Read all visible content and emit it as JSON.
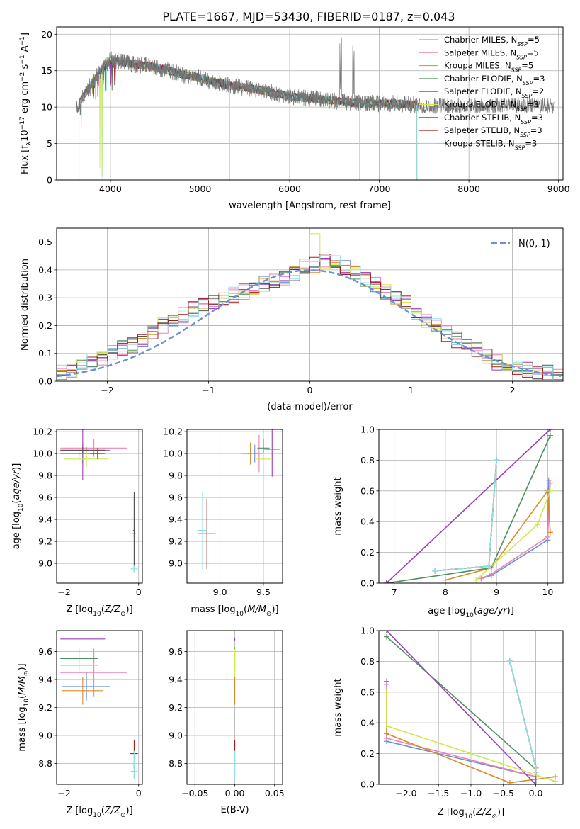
{
  "figure_title": "PLATE=1667, MJD=53430, FIBERID=0187, z=0.043",
  "series_styles": [
    {
      "name": "Chabrier MILES",
      "nssp": "5",
      "color": "#6b8ed6"
    },
    {
      "name": "Salpeter MILES",
      "nssp": "5",
      "color": "#ee82b4"
    },
    {
      "name": "Kroupa MILES",
      "nssp": "5",
      "color": "#d98c2a"
    },
    {
      "name": "Chabrier ELODIE",
      "nssp": "3",
      "color": "#4f8f5f"
    },
    {
      "name": "Salpeter ELODIE",
      "nssp": "2",
      "color": "#9a3fb8"
    },
    {
      "name": "Kroupa ELODIE",
      "nssp": "3",
      "color": "#cfe84a"
    },
    {
      "name": "Chabrier STELIB",
      "nssp": "3",
      "color": "#555555"
    },
    {
      "name": "Salpeter STELIB",
      "nssp": "3",
      "color": "#a11c1c"
    },
    {
      "name": "Kroupa STELIB",
      "nssp": "3",
      "color": "#8ee3e3"
    }
  ],
  "chart_data": [
    {
      "id": "spectrum",
      "type": "line",
      "xlabel": "wavelength [Angstrom, rest frame]",
      "ylabel": "Flux [f_λ10^-17 erg cm^-2 s^-1 A^-1]",
      "xlim": [
        3400,
        9050
      ],
      "ylim": [
        0,
        21
      ],
      "xticks": [
        4000,
        5000,
        6000,
        7000,
        8000,
        9000
      ],
      "yticks": [
        0,
        5,
        10,
        15,
        20
      ],
      "legend": "top-right",
      "data_anchors": {
        "wavelength": [
          3650,
          3800,
          4000,
          4200,
          4500,
          4800,
          5000,
          5300,
          5600,
          6000,
          6400,
          6800,
          7200,
          7420
        ],
        "flux": [
          10.5,
          13.5,
          16.5,
          16.0,
          15.5,
          14.5,
          14.0,
          13.0,
          12.5,
          11.5,
          11.0,
          10.5,
          10.5,
          10.3
        ]
      },
      "spikes_to_zero": [
        3915,
        5330,
        6780,
        7420
      ]
    },
    {
      "id": "residuals",
      "type": "line",
      "xlabel": "(data-model)/error",
      "ylabel": "Normed distribution",
      "xlim": [
        -2.5,
        2.5
      ],
      "ylim": [
        0,
        0.55
      ],
      "xticks": [
        -2,
        -1,
        0,
        1,
        2
      ],
      "yticks": [
        0.0,
        0.1,
        0.2,
        0.3,
        0.4,
        0.5
      ],
      "legend_label": "N(0, 1)",
      "legend": "top-right",
      "hist_bin_width": 0.1,
      "hist_base": [
        0.03,
        0.04,
        0.05,
        0.07,
        0.08,
        0.1,
        0.12,
        0.13,
        0.15,
        0.17,
        0.2,
        0.22,
        0.24,
        0.26,
        0.27,
        0.28,
        0.29,
        0.31,
        0.32,
        0.34,
        0.35,
        0.36,
        0.37,
        0.39,
        0.41,
        0.42,
        0.43,
        0.43,
        0.41,
        0.39,
        0.37,
        0.35,
        0.32,
        0.3,
        0.28,
        0.25,
        0.22,
        0.2,
        0.17,
        0.15,
        0.13,
        0.11,
        0.09,
        0.07,
        0.06,
        0.05,
        0.04,
        0.03,
        0.03,
        0.02
      ]
    },
    {
      "id": "age-vs-Z",
      "type": "scatter",
      "xlabel": "Z [log10(Z/Z⊙)]",
      "ylabel": "age  [log10(age/yr)]",
      "xlim": [
        -2.2,
        0.1
      ],
      "ylim": [
        8.82,
        10.22
      ],
      "xticks": [
        -2,
        0
      ],
      "yticks": [
        9.0,
        9.2,
        9.4,
        9.6,
        9.8,
        10.0,
        10.2
      ],
      "points": [
        {
          "s": 0,
          "x": -1.4,
          "y": 10.03,
          "ex": 0.65,
          "ey": 0.03
        },
        {
          "s": 1,
          "x": -1.2,
          "y": 10.05,
          "ex": 0.9,
          "ey": 0.08
        },
        {
          "s": 2,
          "x": -1.5,
          "y": 10.0,
          "ex": 0.55,
          "ey": 0.1
        },
        {
          "s": 3,
          "x": -1.6,
          "y": 10.0,
          "ex": 0.5,
          "ey": 0.04
        },
        {
          "s": 4,
          "x": -1.5,
          "y": 10.03,
          "ex": 0.6,
          "ey": 0.27
        },
        {
          "s": 5,
          "x": -1.4,
          "y": 9.95,
          "ex": 0.6,
          "ey": 0.07
        },
        {
          "s": 6,
          "x": -1.5,
          "y": 10.03,
          "ex": 0.6,
          "ey": 0.03
        },
        {
          "s": 7,
          "x": -1.1,
          "y": 10.0,
          "ex": 0.2,
          "ey": 0.05
        },
        {
          "s": 3,
          "x": -0.12,
          "y": 9.27,
          "ex": 0.05,
          "ey": 0.35
        },
        {
          "s": 6,
          "x": -0.12,
          "y": 9.3,
          "ex": 0.03,
          "ey": 0.35
        },
        {
          "s": 8,
          "x": -0.12,
          "y": 8.95,
          "ex": 0.1,
          "ey": 0.03
        }
      ]
    },
    {
      "id": "age-vs-mass",
      "type": "scatter",
      "xlabel": "mass [log10(M/M⊙)]",
      "ylabel": "",
      "xlim": [
        8.62,
        9.72
      ],
      "ylim": [
        8.82,
        10.22
      ],
      "xticks": [
        9.0,
        9.5
      ],
      "yticks": [
        9.0,
        9.2,
        9.4,
        9.6,
        9.8,
        10.0,
        10.2
      ],
      "points": [
        {
          "s": 0,
          "x": 9.4,
          "y": 10.0,
          "ex": 0.08,
          "ey": 0.08
        },
        {
          "s": 1,
          "x": 9.45,
          "y": 10.0,
          "ex": 0.05,
          "ey": 0.17
        },
        {
          "s": 2,
          "x": 9.35,
          "y": 10.0,
          "ex": 0.1,
          "ey": 0.1
        },
        {
          "s": 3,
          "x": 9.5,
          "y": 10.05,
          "ex": 0.07,
          "ey": 0.08
        },
        {
          "s": 4,
          "x": 9.6,
          "y": 10.04,
          "ex": 0.09,
          "ey": 0.25
        },
        {
          "s": 5,
          "x": 9.5,
          "y": 9.95,
          "ex": 0.08,
          "ey": 0.06
        },
        {
          "s": 6,
          "x": 8.8,
          "y": 9.3,
          "ex": 0.05,
          "ey": 0.35
        },
        {
          "s": 7,
          "x": 8.85,
          "y": 9.27,
          "ex": 0.1,
          "ey": 0.32
        },
        {
          "s": 8,
          "x": 8.8,
          "y": 9.3,
          "ex": 0.05,
          "ey": 0.35
        }
      ]
    },
    {
      "id": "weight-vs-age",
      "type": "line",
      "xlabel": "age  [log10(age/yr)]",
      "ylabel": "mass weight",
      "xlim": [
        6.7,
        10.3
      ],
      "ylim": [
        0,
        1.0
      ],
      "xticks": [
        7,
        8,
        9,
        10
      ],
      "yticks": [
        0.0,
        0.2,
        0.4,
        0.6,
        0.8,
        1.0
      ],
      "series": [
        {
          "s": 0,
          "x": [
            8.7,
            8.9,
            10.0,
            10.02
          ],
          "y": [
            0.03,
            0.05,
            0.28,
            0.67
          ]
        },
        {
          "s": 1,
          "x": [
            8.7,
            8.9,
            10.0,
            10.05
          ],
          "y": [
            0.03,
            0.06,
            0.3,
            0.65
          ]
        },
        {
          "s": 2,
          "x": [
            8.0,
            8.9,
            10.0,
            10.05
          ],
          "y": [
            0.02,
            0.1,
            0.6,
            0.33
          ]
        },
        {
          "s": 3,
          "x": [
            6.85,
            8.9,
            10.05
          ],
          "y": [
            0.0,
            0.1,
            0.96
          ]
        },
        {
          "s": 4,
          "x": [
            6.85,
            10.05
          ],
          "y": [
            0.0,
            1.0
          ]
        },
        {
          "s": 5,
          "x": [
            8.6,
            9.8,
            10.05
          ],
          "y": [
            0.02,
            0.38,
            0.6
          ]
        },
        {
          "s": 6,
          "x": [
            7.8,
            8.85,
            9.0
          ],
          "y": [
            0.08,
            0.11,
            0.8
          ]
        },
        {
          "s": 7,
          "x": [
            7.8,
            8.85,
            9.0
          ],
          "y": [
            0.08,
            0.11,
            0.8
          ]
        },
        {
          "s": 8,
          "x": [
            7.8,
            8.85,
            9.0
          ],
          "y": [
            0.08,
            0.11,
            0.8
          ]
        }
      ]
    },
    {
      "id": "mass-vs-Z",
      "type": "scatter",
      "xlabel": "Z [log10(Z/Z⊙)]",
      "ylabel": "mass [log10(M/M⊙)]",
      "xlim": [
        -2.2,
        0.1
      ],
      "ylim": [
        8.65,
        9.75
      ],
      "xticks": [
        -2,
        0
      ],
      "yticks": [
        8.8,
        9.0,
        9.2,
        9.4,
        9.6
      ],
      "points": [
        {
          "s": 0,
          "x": -1.4,
          "y": 9.35,
          "ex": 0.65,
          "ey": 0.1
        },
        {
          "s": 1,
          "x": -1.2,
          "y": 9.45,
          "ex": 0.9,
          "ey": 0.17
        },
        {
          "s": 2,
          "x": -1.5,
          "y": 9.32,
          "ex": 0.55,
          "ey": 0.1
        },
        {
          "s": 3,
          "x": -1.6,
          "y": 9.55,
          "ex": 0.5,
          "ey": 0.08
        },
        {
          "s": 4,
          "x": -1.5,
          "y": 9.69,
          "ex": 0.6,
          "ey": 0.001
        },
        {
          "s": 5,
          "x": -1.6,
          "y": 9.5,
          "ex": 0.5,
          "ey": 0.12
        },
        {
          "s": 6,
          "x": -0.12,
          "y": 8.74,
          "ex": 0.1,
          "ey": 0.05
        },
        {
          "s": 7,
          "x": -0.12,
          "y": 8.87,
          "ex": 0.1,
          "ey": 0.1
        },
        {
          "s": 8,
          "x": -0.12,
          "y": 8.79,
          "ex": 0.03,
          "ey": 0.1
        }
      ]
    },
    {
      "id": "mass-vs-EBV",
      "type": "scatter",
      "xlabel": "E(B-V)",
      "ylabel": "",
      "xlim": [
        -0.06,
        0.06
      ],
      "ylim": [
        8.65,
        9.75
      ],
      "xticks": [
        -0.05,
        0.0,
        0.05
      ],
      "yticks": [
        8.8,
        9.0,
        9.2,
        9.4,
        9.6
      ],
      "points": [
        {
          "s": 3,
          "x": 0.0,
          "y": 9.55,
          "ex": 0,
          "ey": 0.08
        },
        {
          "s": 4,
          "x": 0.0,
          "y": 9.69,
          "ex": 0,
          "ey": 0.01
        },
        {
          "s": 5,
          "x": 0.0,
          "y": 9.5,
          "ex": 0,
          "ey": 0.12
        },
        {
          "s": 2,
          "x": 0.0,
          "y": 9.32,
          "ex": 0,
          "ey": 0.1
        },
        {
          "s": 7,
          "x": 0.0,
          "y": 8.87,
          "ex": 0,
          "ey": 0.1
        },
        {
          "s": 8,
          "x": 0.0,
          "y": 8.79,
          "ex": 0,
          "ey": 0.1
        }
      ]
    },
    {
      "id": "weight-vs-Z",
      "type": "line",
      "xlabel": "Z [log10(Z/Z⊙)]",
      "ylabel": "mass weight",
      "xlim": [
        -2.42,
        0.42
      ],
      "ylim": [
        0,
        1.0
      ],
      "xticks": [
        -2.0,
        -1.5,
        -1.0,
        -0.5,
        0.0
      ],
      "yticks": [
        0.0,
        0.2,
        0.4,
        0.6,
        0.8,
        1.0
      ],
      "series": [
        {
          "s": 0,
          "x": [
            -2.3,
            -2.3,
            0.0,
            0.0
          ],
          "y": [
            0.67,
            0.28,
            0.05,
            0.0
          ]
        },
        {
          "s": 1,
          "x": [
            -2.3,
            -2.3,
            0.0
          ],
          "y": [
            0.65,
            0.3,
            0.05
          ]
        },
        {
          "s": 2,
          "x": [
            -2.3,
            -2.3,
            -0.4,
            0.3
          ],
          "y": [
            0.6,
            0.33,
            0.01,
            0.05
          ]
        },
        {
          "s": 3,
          "x": [
            -2.3,
            0.0,
            0.0
          ],
          "y": [
            0.96,
            0.1,
            0.0
          ]
        },
        {
          "s": 4,
          "x": [
            -2.3,
            0.0
          ],
          "y": [
            1.0,
            0.0
          ]
        },
        {
          "s": 5,
          "x": [
            -2.3,
            -2.3,
            0.3
          ],
          "y": [
            0.6,
            0.38,
            0.02
          ]
        },
        {
          "s": 6,
          "x": [
            -0.4,
            0.0,
            0.0
          ],
          "y": [
            0.8,
            0.11,
            0.08
          ]
        },
        {
          "s": 7,
          "x": [
            -0.4,
            0.0,
            0.0
          ],
          "y": [
            0.8,
            0.11,
            0.08
          ]
        },
        {
          "s": 8,
          "x": [
            -0.4,
            0.0,
            0.0
          ],
          "y": [
            0.8,
            0.11,
            0.08
          ]
        }
      ]
    }
  ]
}
